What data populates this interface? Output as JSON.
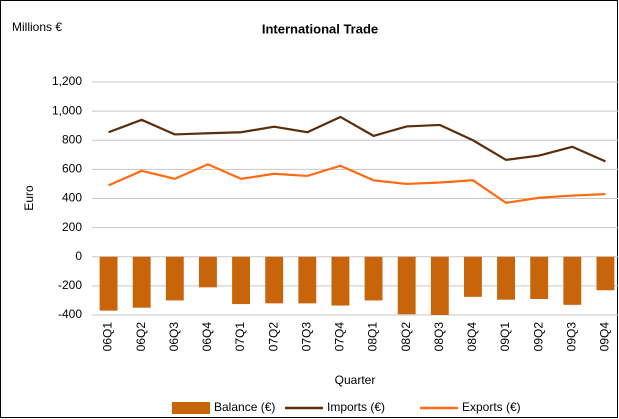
{
  "chart_data": {
    "type": "bar-line",
    "title": "International Trade",
    "y_unit_label": "Millions €",
    "x_label": "Quarter",
    "y_label": "Euro",
    "categories": [
      "06Q1",
      "06Q2",
      "06Q3",
      "06Q4",
      "07Q1",
      "07Q2",
      "07Q3",
      "07Q4",
      "08Q1",
      "08Q2",
      "08Q3",
      "08Q4",
      "09Q1",
      "09Q2",
      "09Q3",
      "09Q4"
    ],
    "series": [
      {
        "name": "Balance (€)",
        "type": "bar",
        "color": "#c8640a",
        "values": [
          -370,
          -350,
          -300,
          -210,
          -325,
          -320,
          -320,
          -335,
          -300,
          -395,
          -400,
          -275,
          -295,
          -290,
          -330,
          -230
        ]
      },
      {
        "name": "Imports (€)",
        "type": "line",
        "color": "#5a2d0c",
        "values": [
          855,
          940,
          840,
          848,
          855,
          893,
          855,
          960,
          830,
          895,
          905,
          800,
          665,
          695,
          755,
          655
        ]
      },
      {
        "name": "Exports (€)",
        "type": "line",
        "color": "#ff6a13",
        "values": [
          490,
          590,
          535,
          635,
          535,
          570,
          555,
          625,
          525,
          500,
          510,
          525,
          370,
          405,
          420,
          430
        ]
      }
    ],
    "ylim": [
      -400,
      1200
    ],
    "yticks": [
      -400,
      -200,
      0,
      200,
      400,
      600,
      800,
      {
        "value": 1000,
        "label": "1,000"
      },
      {
        "value": 1200,
        "label": "1,200"
      }
    ],
    "grid": true,
    "legend": "bottom"
  }
}
